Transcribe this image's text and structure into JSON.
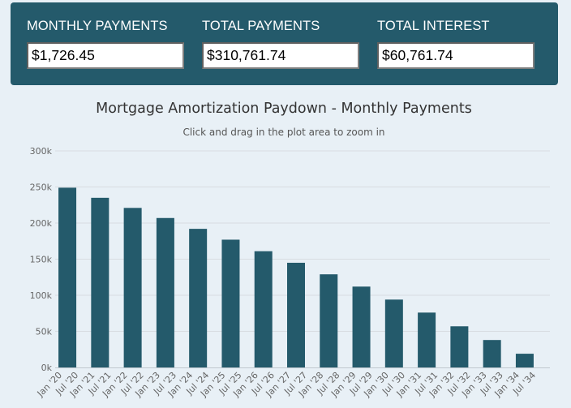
{
  "summary": {
    "monthly": {
      "label": "MONTHLY PAYMENTS",
      "value": "$1,726.45"
    },
    "total": {
      "label": "TOTAL PAYMENTS",
      "value": "$310,761.74"
    },
    "interest": {
      "label": "TOTAL INTEREST",
      "value": "$60,761.74"
    }
  },
  "colors": {
    "panel": "#245a6b",
    "bar": "#245a6b",
    "page_background": "#e8f0f6"
  },
  "chart_data": {
    "type": "bar",
    "title": "Mortgage Amortization Paydown - Monthly Payments",
    "subtitle": "Click and drag in the plot area to zoom in",
    "xlabel": "",
    "ylabel": "",
    "ylim": [
      0,
      300000
    ],
    "yticks": [
      "0k",
      "50k",
      "100k",
      "150k",
      "200k",
      "250k",
      "300k"
    ],
    "grid": true,
    "legend": "none",
    "xticks": [
      "Jan '20",
      "Jul '20",
      "Jan '21",
      "Jul '21",
      "Jan '22",
      "Jul '22",
      "Jan '23",
      "Jul '23",
      "Jan '24",
      "Jul '24",
      "Jan '25",
      "Jul '25",
      "Jan '26",
      "Jul '26",
      "Jan '27",
      "Jul '27",
      "Jan '28",
      "Jul '28",
      "Jan '29",
      "Jul '29",
      "Jan '30",
      "Jul '30",
      "Jan '31",
      "Jul '31",
      "Jan '32",
      "Jul '32",
      "Jan '33",
      "Jul '33",
      "Jan '34",
      "Jul '34"
    ],
    "categories": [
      "Jan '20",
      "Jan '21",
      "Jan '22",
      "Jan '23",
      "Jan '24",
      "Jan '25",
      "Jan '26",
      "Jan '27",
      "Jan '28",
      "Jan '29",
      "Jan '30",
      "Jan '31",
      "Jan '32",
      "Jan '33",
      "Jan '34"
    ],
    "values": [
      249000,
      235000,
      221000,
      207000,
      192000,
      177000,
      161000,
      145000,
      129000,
      112000,
      94000,
      76000,
      57000,
      38000,
      19000
    ]
  }
}
